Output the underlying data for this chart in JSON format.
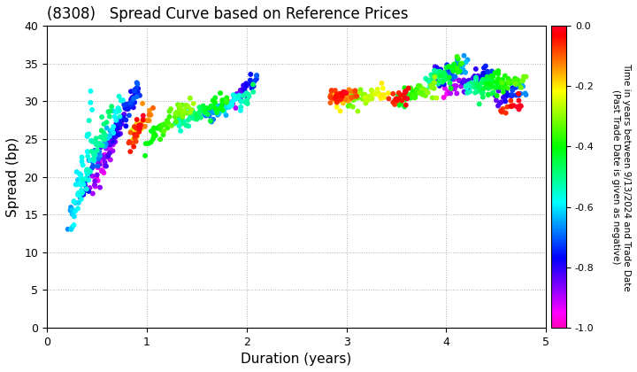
{
  "title": "(8308)   Spread Curve based on Reference Prices",
  "xlabel": "Duration (years)",
  "ylabel": "Spread (bp)",
  "colorbar_label_line1": "Time in years between 9/13/2024 and Trade Date",
  "colorbar_label_line2": "(Past Trade Date is given as negative)",
  "xlim": [
    0,
    5
  ],
  "ylim": [
    0,
    40
  ],
  "xticks": [
    0,
    1,
    2,
    3,
    4,
    5
  ],
  "yticks": [
    0,
    5,
    10,
    15,
    20,
    25,
    30,
    35,
    40
  ],
  "cbar_ticks": [
    0.0,
    -0.2,
    -0.4,
    -0.6,
    -0.8,
    -1.0
  ],
  "background_color": "#ffffff",
  "grid_color": "#b0b0b0",
  "point_size": 18
}
